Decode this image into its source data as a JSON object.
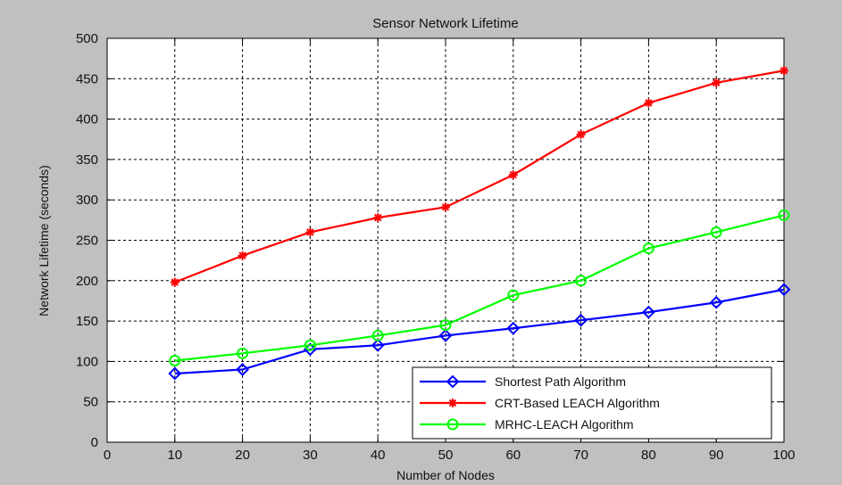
{
  "chart_data": {
    "type": "line",
    "title": "Sensor Network Lifetime",
    "xlabel": "Number of Nodes",
    "ylabel": "Network Lifetime (seconds)",
    "xlim": [
      0,
      100
    ],
    "ylim": [
      0,
      500
    ],
    "xticks": [
      0,
      10,
      20,
      30,
      40,
      50,
      60,
      70,
      80,
      90,
      100
    ],
    "yticks": [
      0,
      50,
      100,
      150,
      200,
      250,
      300,
      350,
      400,
      450,
      500
    ],
    "grid": true,
    "legend_position": "bottom-right",
    "x": [
      10,
      20,
      30,
      40,
      50,
      60,
      70,
      80,
      90,
      100
    ],
    "series": [
      {
        "name": "Shortest Path Algorithm",
        "color": "#0000ff",
        "marker": "diamond",
        "values": [
          85,
          90,
          115,
          120,
          132,
          141,
          151,
          161,
          173,
          189
        ]
      },
      {
        "name": "CRT-Based LEACH Algorithm",
        "color": "#ff0000",
        "marker": "star",
        "values": [
          198,
          231,
          260,
          278,
          291,
          331,
          381,
          420,
          445,
          460
        ]
      },
      {
        "name": "MRHC-LEACH Algorithm",
        "color": "#00ff00",
        "marker": "circle",
        "values": [
          101,
          110,
          120,
          132,
          145,
          182,
          200,
          240,
          260,
          281
        ]
      }
    ]
  }
}
